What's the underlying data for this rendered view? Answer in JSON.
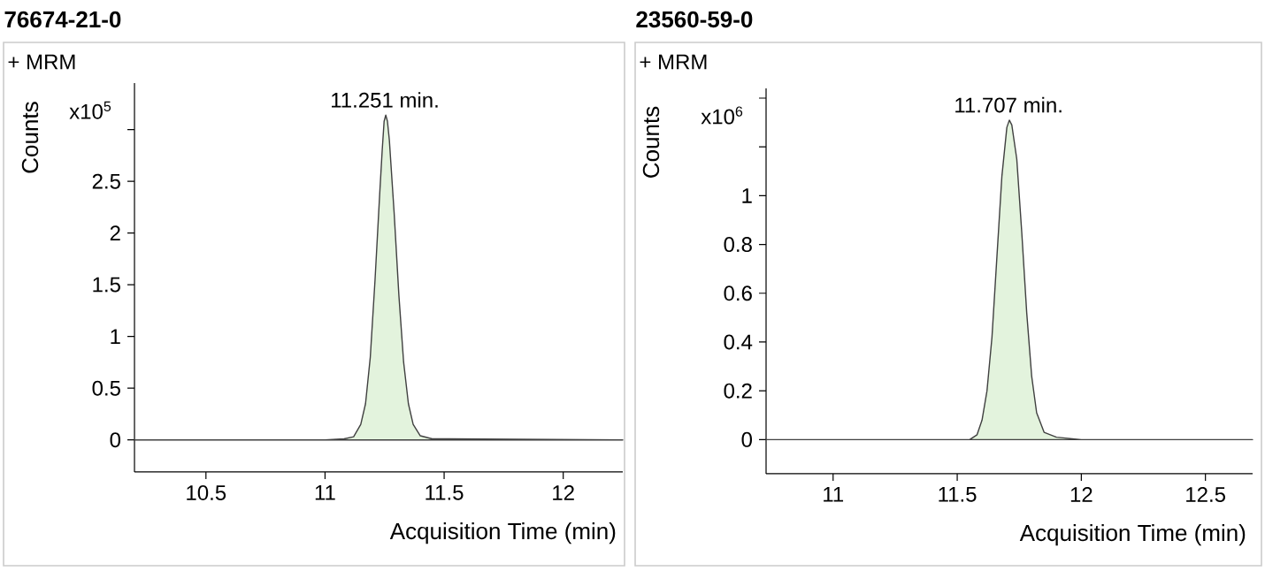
{
  "chart_data": [
    {
      "type": "area",
      "title": "76674-21-0",
      "subtitle": "+ MRM",
      "xlabel": "Acquisition Time (min)",
      "ylabel": "Counts",
      "annotations": [
        "x10$^{5}$",
        {
          "text": "11.251 min.",
          "x": 11.251,
          "y": 3.14
        }
      ],
      "xlim": [
        10.2,
        12.25
      ],
      "ylim": [
        -0.31,
        3.45
      ],
      "xticks": [
        10.5,
        11,
        11.5,
        12
      ],
      "yticks": [
        0,
        0.5,
        1,
        1.5,
        2,
        2.5,
        {
          "value": 3,
          "label": null
        }
      ],
      "series": [
        {
          "color": "#e3f3dd",
          "x": [
            10.2,
            11.0,
            11.08,
            11.12,
            11.15,
            11.17,
            11.19,
            11.21,
            11.23,
            11.24,
            11.248,
            11.255,
            11.262,
            11.27,
            11.29,
            11.31,
            11.33,
            11.35,
            11.37,
            11.4,
            11.45,
            11.5,
            12.25
          ],
          "values": [
            0,
            0,
            0.01,
            0.03,
            0.15,
            0.35,
            0.8,
            1.55,
            2.4,
            2.8,
            3.08,
            3.14,
            3.08,
            2.9,
            2.2,
            1.4,
            0.75,
            0.35,
            0.15,
            0.04,
            0.01,
            0.01,
            0
          ]
        }
      ]
    },
    {
      "type": "area",
      "title": "23560-59-0",
      "subtitle": "+ MRM",
      "xlabel": "Acquisition Time (min)",
      "ylabel": "Counts",
      "annotations": [
        "x10$^{6}$",
        {
          "text": "11.707 min.",
          "x": 11.707,
          "y": 1.31
        }
      ],
      "xlim": [
        10.73,
        12.69
      ],
      "ylim": [
        -0.14,
        1.44
      ],
      "xticks": [
        11,
        11.5,
        12,
        12.5
      ],
      "yticks": [
        0,
        0.2,
        0.4,
        0.6,
        0.8,
        1,
        {
          "value": 1.2,
          "label": null
        },
        {
          "value": 1.4,
          "label": null
        }
      ],
      "series": [
        {
          "color": "#e3f3dd",
          "x": [
            10.73,
            11.5,
            11.55,
            11.58,
            11.6,
            11.62,
            11.64,
            11.66,
            11.68,
            11.7,
            11.71,
            11.72,
            11.74,
            11.76,
            11.78,
            11.8,
            11.82,
            11.85,
            11.9,
            12.0,
            12.69
          ],
          "values": [
            0,
            0,
            0,
            0.02,
            0.08,
            0.2,
            0.42,
            0.75,
            1.08,
            1.28,
            1.31,
            1.29,
            1.15,
            0.85,
            0.52,
            0.26,
            0.11,
            0.03,
            0.01,
            0,
            0
          ]
        }
      ]
    }
  ]
}
